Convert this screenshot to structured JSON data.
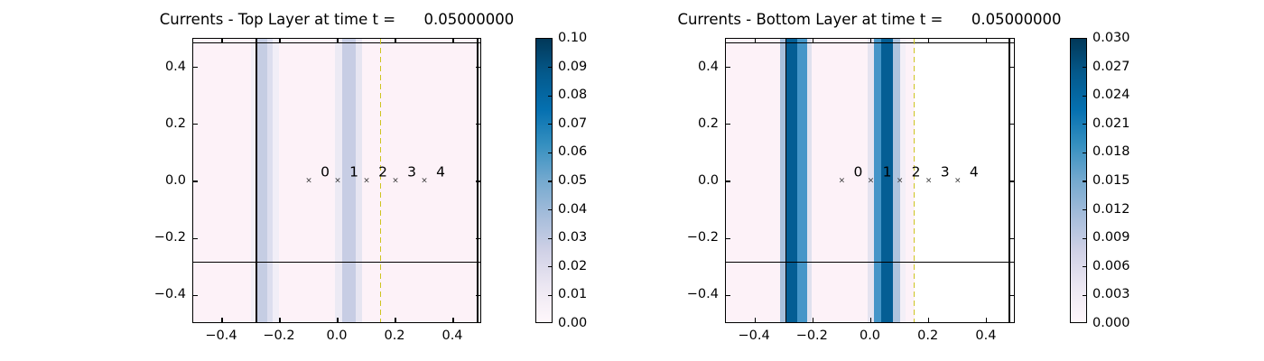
{
  "figure": {
    "background": "#ffffff"
  },
  "colors": {
    "axis": "#000000",
    "dashed_line": "#cdc41f",
    "marker": "#333333",
    "plot_bg_low": "#fdf2f8",
    "no_data_white": "#ffffff"
  },
  "colormap_stops": [
    "#fff7fb",
    "#ece7f2",
    "#d0d1e6",
    "#a6bddb",
    "#74a9cf",
    "#3690c0",
    "#0570b0",
    "#045a8d",
    "#023858"
  ],
  "chart_data": [
    {
      "type": "heatmap",
      "title": "Currents - Top Layer at time t =      0.05000000",
      "xlabel": "",
      "ylabel": "",
      "xlim": [
        -0.5,
        0.5
      ],
      "ylim": [
        -0.5,
        0.5
      ],
      "x_ticks": [
        -0.4,
        -0.2,
        0.0,
        0.2,
        0.4
      ],
      "y_ticks": [
        0.4,
        0.2,
        0.0,
        -0.2,
        -0.4
      ],
      "x_tick_labels": [
        "−0.4",
        "−0.2",
        "0.0",
        "0.2",
        "0.4"
      ],
      "y_tick_labels": [
        "0.4",
        "0.2",
        "0.0",
        "−0.2",
        "−0.4"
      ],
      "grid": false,
      "colormap": "PuBu",
      "background_value_color": "#fdf2f8",
      "bands": [
        {
          "x0": -0.3,
          "x1": -0.287,
          "color": "#f3eff7",
          "approx_value": 0.006
        },
        {
          "x0": -0.281,
          "x1": -0.244,
          "color": "#c5cde3",
          "approx_value": 0.028
        },
        {
          "x0": -0.244,
          "x1": -0.225,
          "color": "#dcdeee",
          "approx_value": 0.018
        },
        {
          "x0": -0.225,
          "x1": -0.203,
          "color": "#f1eef7",
          "approx_value": 0.008
        },
        {
          "x0": -0.01,
          "x1": 0.016,
          "color": "#eceaf4",
          "approx_value": 0.012
        },
        {
          "x0": 0.016,
          "x1": 0.063,
          "color": "#c7cde4",
          "approx_value": 0.028
        },
        {
          "x0": 0.063,
          "x1": 0.084,
          "color": "#e6e5f1",
          "approx_value": 0.014
        }
      ],
      "white_region": {
        "x0": 0.4875,
        "x1": 0.5
      },
      "black_vlines": [
        -0.281,
        0.484
      ],
      "black_hlines": [
        -0.283,
        0.486
      ],
      "dashed_yellow_vline": 0.148,
      "gauges": [
        {
          "label": "0",
          "x": -0.1,
          "y": 0.0
        },
        {
          "label": "1",
          "x": 0.0,
          "y": 0.0
        },
        {
          "label": "2",
          "x": 0.1,
          "y": 0.0
        },
        {
          "label": "3",
          "x": 0.2,
          "y": 0.0
        },
        {
          "label": "4",
          "x": 0.3,
          "y": 0.0
        }
      ],
      "colorbar": {
        "range": [
          0.0,
          0.1
        ],
        "tick_labels": [
          "0.10",
          "0.09",
          "0.08",
          "0.07",
          "0.06",
          "0.05",
          "0.04",
          "0.03",
          "0.02",
          "0.01",
          "0.00"
        ]
      }
    },
    {
      "type": "heatmap",
      "title": "Currents - Bottom Layer at time t =      0.05000000",
      "xlabel": "",
      "ylabel": "",
      "xlim": [
        -0.5,
        0.5
      ],
      "ylim": [
        -0.5,
        0.5
      ],
      "x_ticks": [
        -0.4,
        -0.2,
        0.0,
        0.2,
        0.4
      ],
      "y_ticks": [
        0.4,
        0.2,
        0.0,
        -0.2,
        -0.4
      ],
      "x_tick_labels": [
        "−0.4",
        "−0.2",
        "0.0",
        "0.2",
        "0.4"
      ],
      "y_tick_labels": [
        "0.4",
        "0.2",
        "0.0",
        "−0.2",
        "−0.4"
      ],
      "grid": false,
      "colormap": "PuBu",
      "background_value_color": "#fdf2f8",
      "bands": [
        {
          "x0": -0.313,
          "x1": -0.295,
          "color": "#a8c0dc",
          "approx_value": 0.011
        },
        {
          "x0": -0.293,
          "x1": -0.254,
          "color": "#045e94",
          "approx_value": 0.024
        },
        {
          "x0": -0.254,
          "x1": -0.22,
          "color": "#4596c8",
          "approx_value": 0.018
        },
        {
          "x0": -0.22,
          "x1": -0.204,
          "color": "#dfe1ee",
          "approx_value": 0.006
        },
        {
          "x0": -0.011,
          "x1": 0.011,
          "color": "#e5e3f0",
          "approx_value": 0.005
        },
        {
          "x0": 0.011,
          "x1": 0.036,
          "color": "#4595c8",
          "approx_value": 0.018
        },
        {
          "x0": 0.036,
          "x1": 0.076,
          "color": "#045e94",
          "approx_value": 0.024
        },
        {
          "x0": 0.076,
          "x1": 0.101,
          "color": "#aec4de",
          "approx_value": 0.011
        },
        {
          "x0": 0.101,
          "x1": 0.12,
          "color": "#f3eff7",
          "approx_value": 0.002
        }
      ],
      "white_region": {
        "x0": 0.15,
        "x1": 0.5
      },
      "black_vlines": [
        -0.293,
        0.478
      ],
      "black_hlines": [
        -0.283,
        0.486
      ],
      "dashed_yellow_vline": 0.15,
      "gauges": [
        {
          "label": "0",
          "x": -0.1,
          "y": 0.0
        },
        {
          "label": "1",
          "x": 0.0,
          "y": 0.0
        },
        {
          "label": "2",
          "x": 0.1,
          "y": 0.0
        },
        {
          "label": "3",
          "x": 0.2,
          "y": 0.0
        },
        {
          "label": "4",
          "x": 0.3,
          "y": 0.0
        }
      ],
      "colorbar": {
        "range": [
          0.0,
          0.03
        ],
        "tick_labels": [
          "0.030",
          "0.027",
          "0.024",
          "0.021",
          "0.018",
          "0.015",
          "0.012",
          "0.009",
          "0.006",
          "0.003",
          "0.000"
        ]
      }
    }
  ]
}
